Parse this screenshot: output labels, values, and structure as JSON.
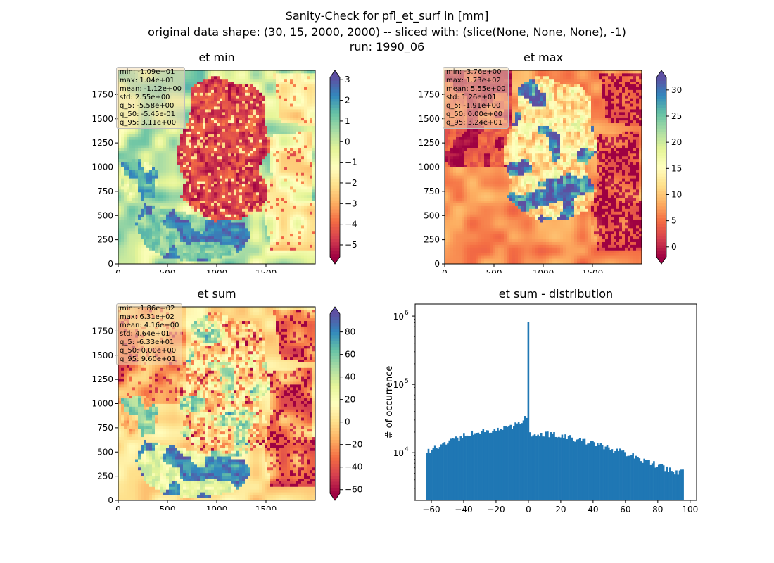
{
  "figure": {
    "title_lines": [
      "Sanity-Check for pfl_et_surf in [mm]",
      "original data shape: (30, 15, 2000, 2000) -- sliced with: (slice(None, None, None), -1)",
      "run: 1990_06"
    ]
  },
  "chart_data": [
    {
      "type": "heatmap",
      "title": "et min",
      "colormap": "Spectral",
      "x_ticks": [
        "0",
        "500",
        "1000",
        "1500"
      ],
      "y_ticks": [
        "0",
        "250",
        "500",
        "750",
        "1000",
        "1250",
        "1500",
        "1750"
      ],
      "xlim": [
        0,
        2000
      ],
      "ylim": [
        0,
        2000
      ],
      "colorbar": {
        "range": [
          -5.58,
          3.11
        ],
        "ticks": [
          -5,
          -4,
          -3,
          -2,
          -1,
          0,
          1,
          2,
          3
        ],
        "tick_labels": [
          "−5",
          "−4",
          "−3",
          "−2",
          "−1",
          "0",
          "1",
          "2",
          "3"
        ],
        "extend": "both"
      },
      "stats": [
        "min: -1.09e+01",
        "max: 1.04e+01",
        "mean: -1.12e+00",
        "std: 2.55e+00",
        "q_5: -5.58e+00",
        "q_50: -5.45e-01",
        "q_95: 3.11e+00"
      ]
    },
    {
      "type": "heatmap",
      "title": "et max",
      "colormap": "Spectral",
      "x_ticks": [
        "0",
        "500",
        "1000",
        "1500"
      ],
      "y_ticks": [
        "0",
        "250",
        "500",
        "750",
        "1000",
        "1250",
        "1500",
        "1750"
      ],
      "xlim": [
        0,
        2000
      ],
      "ylim": [
        0,
        2000
      ],
      "colorbar": {
        "range": [
          -1.91,
          32.4
        ],
        "ticks": [
          0,
          5,
          10,
          15,
          20,
          25,
          30
        ],
        "tick_labels": [
          "0",
          "5",
          "10",
          "15",
          "20",
          "25",
          "30"
        ],
        "extend": "both"
      },
      "stats": [
        "min: -3.76e+00",
        "max: 1.73e+02",
        "mean: 5.55e+00",
        "std: 1.26e+01",
        "q_5: -1.91e+00",
        "q_50: 0.00e+00",
        "q_95: 3.24e+01"
      ]
    },
    {
      "type": "heatmap",
      "title": "et sum",
      "colormap": "Spectral",
      "x_ticks": [
        "0",
        "500",
        "1000",
        "1500"
      ],
      "y_ticks": [
        "0",
        "250",
        "500",
        "750",
        "1000",
        "1250",
        "1500",
        "1750"
      ],
      "xlim": [
        0,
        2000
      ],
      "ylim": [
        0,
        2000
      ],
      "colorbar": {
        "range": [
          -63.3,
          96.0
        ],
        "ticks": [
          -60,
          -40,
          -20,
          0,
          20,
          40,
          60,
          80
        ],
        "tick_labels": [
          "−60",
          "−40",
          "−20",
          "0",
          "20",
          "40",
          "60",
          "80"
        ],
        "extend": "both"
      },
      "stats": [
        "min: -1.86e+02",
        "max: 6.31e+02",
        "mean: 4.16e+00",
        "std: 4.64e+01",
        "q_5: -6.33e+01",
        "q_50: 0.00e+00",
        "q_95: 9.60e+01"
      ]
    },
    {
      "type": "bar",
      "title": "et sum - distribution",
      "ylabel": "# of occurrence",
      "ylog": true,
      "xlim": [
        -70,
        104
      ],
      "ylim": [
        2000,
        1500000
      ],
      "x_ticks": [
        -60,
        -40,
        -20,
        0,
        20,
        40,
        60,
        80,
        100
      ],
      "x_tick_labels": [
        "−60",
        "−40",
        "−20",
        "0",
        "20",
        "40",
        "60",
        "80",
        "100"
      ],
      "y_ticks": [
        10000,
        100000,
        1000000
      ],
      "y_tick_labels": [
        "10",
        "10",
        "10"
      ],
      "y_tick_exponents": [
        "4",
        "5",
        "6"
      ],
      "color": "#1f77b4",
      "bins": {
        "start": -63.3,
        "end": 96.0,
        "count": 160
      },
      "profile": [
        {
          "x": -63.3,
          "y": 9500
        },
        {
          "x": -60,
          "y": 11500
        },
        {
          "x": -50,
          "y": 14500
        },
        {
          "x": -40,
          "y": 17500
        },
        {
          "x": -30,
          "y": 20500
        },
        {
          "x": -20,
          "y": 22000
        },
        {
          "x": -10,
          "y": 24000
        },
        {
          "x": -5,
          "y": 28000
        },
        {
          "x": -2,
          "y": 36000
        },
        {
          "x": -1,
          "y": 30000
        },
        {
          "x": 1,
          "y": 18000
        },
        {
          "x": 5,
          "y": 19500
        },
        {
          "x": 10,
          "y": 19000
        },
        {
          "x": 20,
          "y": 17500
        },
        {
          "x": 30,
          "y": 15500
        },
        {
          "x": 40,
          "y": 13500
        },
        {
          "x": 50,
          "y": 11500
        },
        {
          "x": 60,
          "y": 9800
        },
        {
          "x": 70,
          "y": 8000
        },
        {
          "x": 80,
          "y": 6500
        },
        {
          "x": 90,
          "y": 5400
        },
        {
          "x": 96,
          "y": 5200
        }
      ],
      "spike": {
        "x": 0,
        "y": 820000
      }
    }
  ]
}
